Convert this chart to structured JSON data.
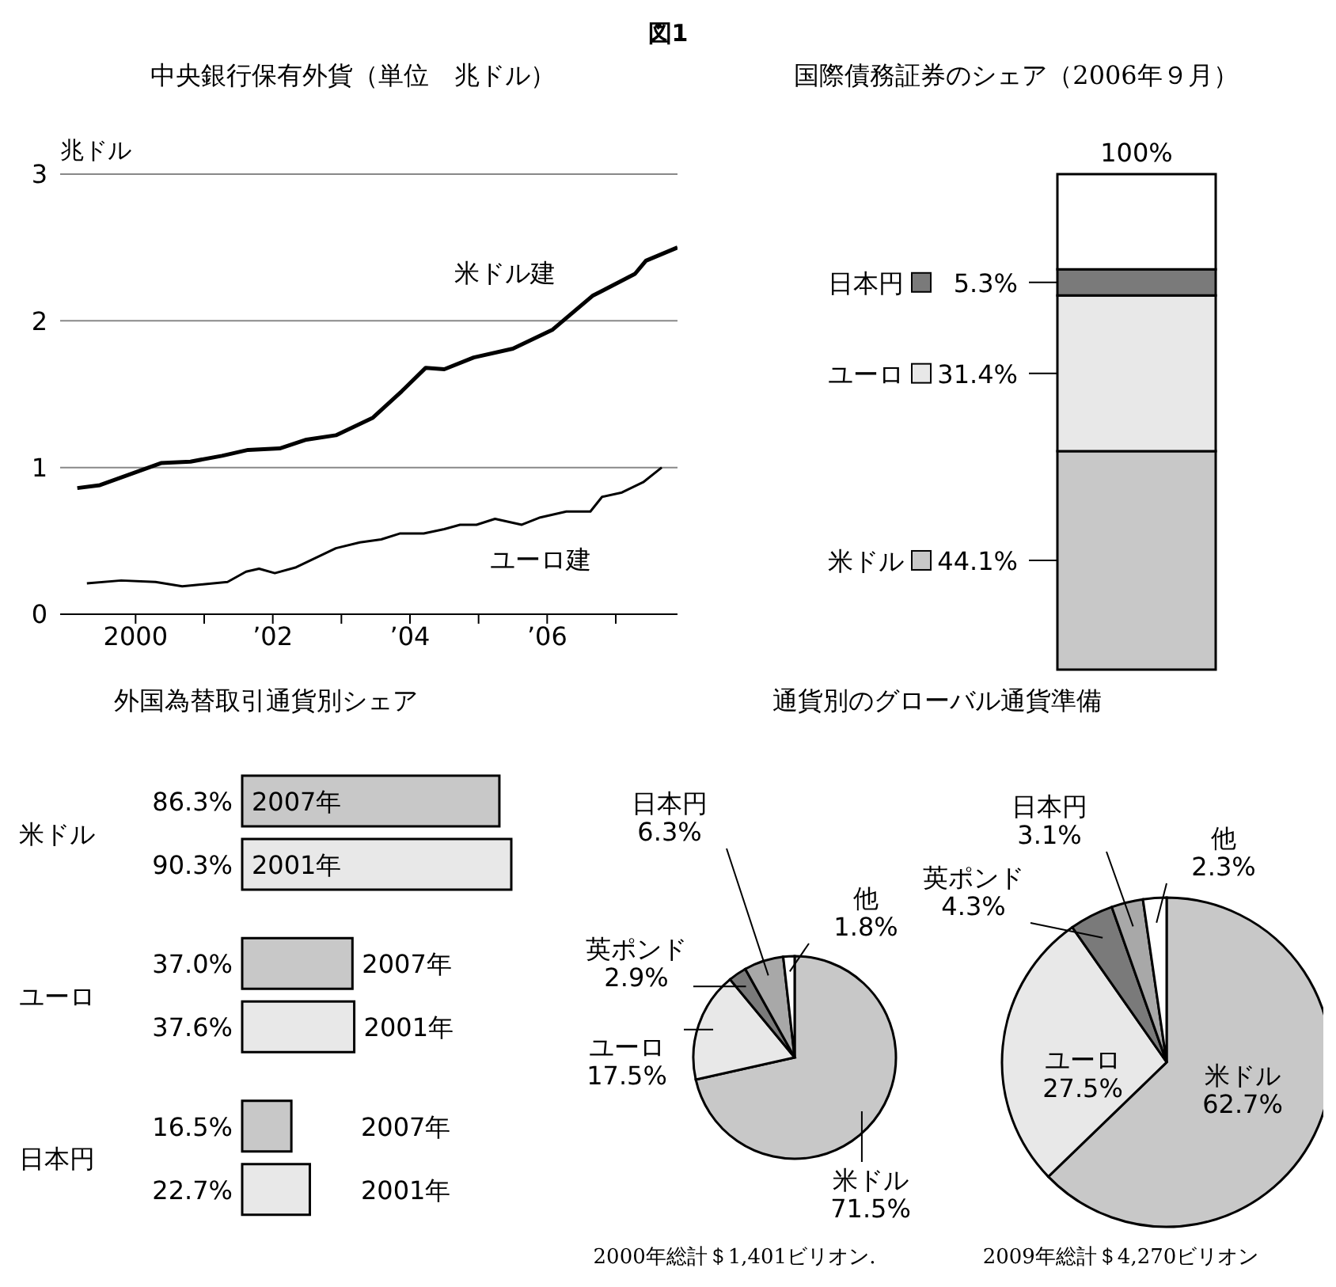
{
  "chart_data": [
    {
      "type": "line",
      "title": "中央銀行保有外貨（単位　兆ドル）",
      "ylabel": "兆ドル",
      "annotations": [
        "図1"
      ],
      "xlim": [
        1998.9,
        2007.9
      ],
      "xticks": [
        {
          "value": 2000,
          "label": "2000"
        },
        {
          "value": 2001,
          "label": null
        },
        {
          "value": 2002,
          "label": "’02"
        },
        {
          "value": 2003,
          "label": null
        },
        {
          "value": 2004,
          "label": "’04"
        },
        {
          "value": 2005,
          "label": null
        },
        {
          "value": 2006,
          "label": "’06"
        },
        {
          "value": 2007,
          "label": null
        }
      ],
      "ylim": [
        0,
        3
      ],
      "yticks": [
        0,
        1,
        2,
        3
      ],
      "grid": "y",
      "series": [
        {
          "name": "米ドル建",
          "color": "#000000",
          "x": [
            1999.15,
            1999.48,
            2000.37,
            2000.8,
            2001.26,
            2001.64,
            2002.1,
            2002.49,
            2002.92,
            2003.46,
            2003.88,
            2004.23,
            2004.5,
            2004.93,
            2005.5,
            2006.08,
            2006.66,
            2007.28,
            2007.44,
            2007.9
          ],
          "values": [
            0.86,
            0.88,
            1.03,
            1.04,
            1.08,
            1.12,
            1.13,
            1.19,
            1.22,
            1.34,
            1.52,
            1.68,
            1.67,
            1.75,
            1.81,
            1.94,
            2.17,
            2.32,
            2.41,
            2.5
          ]
        },
        {
          "name": "ユーロ建",
          "color": "#000000",
          "x": [
            1999.29,
            1999.79,
            2000.29,
            2000.68,
            2001.34,
            2001.61,
            2001.8,
            2002.03,
            2002.34,
            2002.92,
            2003.27,
            2003.58,
            2003.85,
            2004.2,
            2004.5,
            2004.73,
            2004.97,
            2005.24,
            2005.63,
            2005.9,
            2006.28,
            2006.63,
            2006.8,
            2007.09,
            2007.4,
            2007.67
          ],
          "values": [
            0.21,
            0.23,
            0.22,
            0.19,
            0.22,
            0.29,
            0.31,
            0.28,
            0.32,
            0.45,
            0.49,
            0.51,
            0.55,
            0.55,
            0.58,
            0.61,
            0.61,
            0.65,
            0.61,
            0.66,
            0.7,
            0.7,
            0.8,
            0.83,
            0.9,
            1.0
          ]
        }
      ]
    },
    {
      "type": "bar",
      "title": "国際債務証券のシェア（2006年９月）",
      "stacked": true,
      "legend": "left",
      "categories": [
        null
      ],
      "totals": [
        "100%"
      ],
      "series": [
        {
          "name": "米ドル",
          "color": "#c8c8c8",
          "values": [
            44.1
          ],
          "value_labels": [
            "44.1%"
          ]
        },
        {
          "name": "ユーロ",
          "color": "#e8e8e8",
          "values": [
            31.4
          ],
          "value_labels": [
            "31.4%"
          ]
        },
        {
          "name": "日本円",
          "color": "#7a7a7a",
          "values": [
            5.3
          ],
          "value_labels": [
            "5.3%"
          ]
        },
        {
          "color": "#ffffff",
          "values": [
            19.2
          ]
        }
      ]
    },
    {
      "type": "bar",
      "orientation": "horizontal",
      "title": "外国為替取引通貨別シェア",
      "categories": [
        "米ドル",
        "ユーロ",
        "日本円"
      ],
      "series": [
        {
          "name": "2007年",
          "color": "#c8c8c8",
          "values": [
            86.3,
            37.0,
            16.5
          ],
          "value_labels": [
            "86.3%",
            "37.0%",
            "16.5%"
          ]
        },
        {
          "name": "2001年",
          "color": "#e8e8e8",
          "values": [
            90.3,
            37.6,
            22.7
          ],
          "value_labels": [
            "90.3%",
            "37.6%",
            "22.7%"
          ]
        }
      ]
    },
    {
      "type": "pie",
      "title": "通貨別のグローバル通貨準備",
      "annotations": [
        "2000年総計＄1,401ビリオン."
      ],
      "categories": [
        "米ドル",
        "ユーロ",
        "英ポンド",
        "日本円",
        "他"
      ],
      "values": [
        71.5,
        17.5,
        2.9,
        6.3,
        1.8
      ],
      "value_labels": [
        "71.5%",
        "17.5%",
        "2.9%",
        "6.3%",
        "1.8%"
      ],
      "colors": [
        "#c8c8c8",
        "#e8e8e8",
        "#7a7a7a",
        "#a8a8a8",
        "#ffffff"
      ]
    },
    {
      "type": "pie",
      "annotations": [
        "2009年総計＄4,270ビリオン"
      ],
      "categories": [
        "米ドル",
        "ユーロ",
        "英ポンド",
        "日本円",
        "他"
      ],
      "values": [
        62.7,
        27.5,
        4.3,
        3.1,
        2.3
      ],
      "value_labels": [
        "62.7%",
        "27.5%",
        "4.3%",
        "3.1%",
        "2.3%"
      ],
      "colors": [
        "#c8c8c8",
        "#e8e8e8",
        "#7a7a7a",
        "#a8a8a8",
        "#ffffff"
      ]
    }
  ]
}
